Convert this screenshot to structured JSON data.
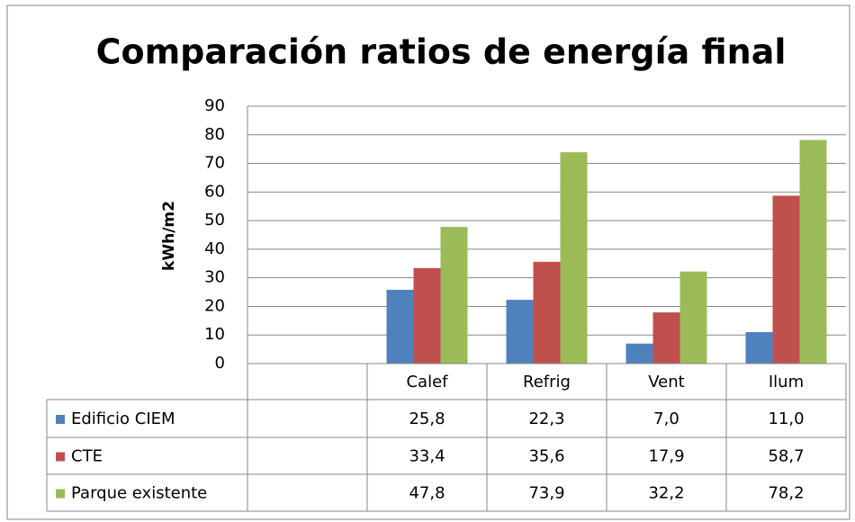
{
  "chart_data": {
    "type": "bar",
    "title": "Comparación ratios de energía final",
    "y_label": "kWh/m2",
    "categories": [
      null,
      "Calef",
      "Refrig",
      "Vent",
      "Ilum"
    ],
    "series": [
      {
        "name": "Edificio CIEM",
        "color": "#4f81bd",
        "values": [
          null,
          25.8,
          22.3,
          7.0,
          11.0
        ],
        "value_labels": [
          null,
          "25,8",
          "22,3",
          "7,0",
          "11,0"
        ]
      },
      {
        "name": "CTE",
        "color": "#c0504d",
        "values": [
          null,
          33.4,
          35.6,
          17.9,
          58.7
        ],
        "value_labels": [
          null,
          "33,4",
          "35,6",
          "17,9",
          "58,7"
        ]
      },
      {
        "name": "Parque existente",
        "color": "#9bbb59",
        "values": [
          null,
          47.8,
          73.9,
          32.2,
          78.2
        ],
        "value_labels": [
          null,
          "47,8",
          "73,9",
          "32,2",
          "78,2"
        ]
      }
    ],
    "ylim": [
      0,
      90
    ],
    "yticks": [
      0,
      10,
      20,
      30,
      40,
      50,
      60,
      70,
      80,
      90
    ],
    "grid": true,
    "data_table": true
  }
}
